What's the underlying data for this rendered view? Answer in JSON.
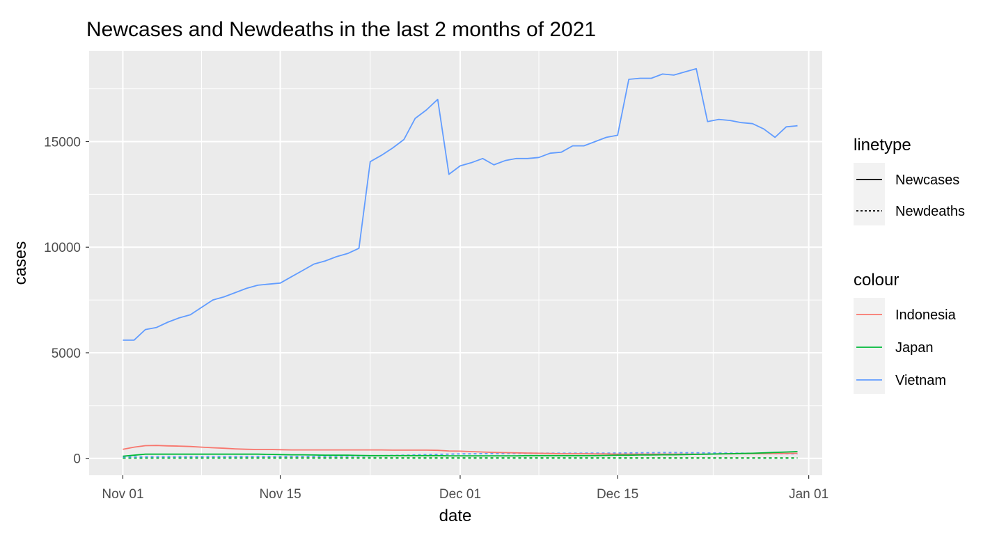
{
  "chart_data": {
    "type": "line",
    "title": "Newcases and Newdeaths in the last 2 months of 2021",
    "xlabel": "date",
    "ylabel": "cases",
    "x_ticks": [
      "Nov 01",
      "Nov 15",
      "Dec 01",
      "Dec 15",
      "Jan 01"
    ],
    "y_ticks": [
      "0",
      "5000",
      "10000",
      "15000"
    ],
    "ylim": [
      -800,
      19300
    ],
    "xlim_days": [
      -3,
      62.2
    ],
    "start_date": "2021-11-01",
    "grid": true,
    "legend_position": "right",
    "linetype_legend": {
      "title": "linetype",
      "entries": [
        {
          "label": "Newcases",
          "dash": "solid"
        },
        {
          "label": "Newdeaths",
          "dash": "dotted"
        }
      ]
    },
    "colour_legend": {
      "title": "colour",
      "entries": [
        {
          "label": "Indonesia",
          "color": "#F8766D"
        },
        {
          "label": "Japan",
          "color": "#00BA38"
        },
        {
          "label": "Vietnam",
          "color": "#619CFF"
        }
      ]
    },
    "series": [
      {
        "name": "Vietnam",
        "metric": "Newcases",
        "color": "#619CFF",
        "dash": "solid",
        "values": [
          5600,
          5600,
          6100,
          6200,
          6450,
          6650,
          6800,
          7150,
          7500,
          7650,
          7850,
          8050,
          8200,
          8250,
          8300,
          8600,
          8900,
          9200,
          9350,
          9550,
          9700,
          9950,
          14050,
          14350,
          14700,
          15100,
          16100,
          16500,
          17000,
          13450,
          13850,
          14000,
          14200,
          13900,
          14100,
          14200,
          14200,
          14250,
          14450,
          14500,
          14800,
          14800,
          15000,
          15200,
          15300,
          17950,
          18000,
          18000,
          18200,
          18150,
          18300,
          18450,
          15950,
          16050,
          16000,
          15900,
          15850,
          15600,
          15200,
          15700,
          15750
        ]
      },
      {
        "name": "Indonesia",
        "metric": "Newcases",
        "color": "#F8766D",
        "dash": "solid",
        "values": [
          430,
          530,
          600,
          610,
          590,
          580,
          560,
          530,
          500,
          480,
          450,
          430,
          420,
          420,
          410,
          400,
          400,
          400,
          400,
          400,
          400,
          400,
          400,
          400,
          390,
          390,
          390,
          390,
          380,
          350,
          340,
          320,
          300,
          280,
          270,
          260,
          250,
          240,
          230,
          220,
          220,
          220,
          210,
          210,
          200,
          200,
          200,
          200,
          200,
          200,
          200,
          200,
          200,
          210,
          210,
          220,
          220,
          220,
          230,
          230,
          240
        ]
      },
      {
        "name": "Japan",
        "metric": "Newcases",
        "color": "#00BA38",
        "dash": "solid",
        "values": [
          100,
          150,
          200,
          200,
          200,
          200,
          200,
          200,
          200,
          200,
          200,
          200,
          200,
          190,
          180,
          170,
          170,
          160,
          150,
          150,
          150,
          140,
          130,
          130,
          130,
          130,
          130,
          130,
          130,
          120,
          120,
          120,
          120,
          120,
          120,
          120,
          130,
          130,
          130,
          130,
          130,
          130,
          130,
          140,
          150,
          150,
          160,
          160,
          170,
          170,
          180,
          190,
          200,
          210,
          220,
          230,
          240,
          260,
          280,
          300,
          320
        ]
      },
      {
        "name": "Indonesia",
        "metric": "Newdeaths",
        "color": "#F8766D",
        "dash": "dotted",
        "values": [
          20,
          20,
          20,
          20,
          20,
          20,
          20,
          20,
          20,
          20,
          20,
          20,
          20,
          20,
          20,
          20,
          20,
          20,
          20,
          20,
          20,
          20,
          20,
          20,
          20,
          20,
          20,
          20,
          20,
          20,
          20,
          20,
          20,
          20,
          20,
          20,
          20,
          20,
          20,
          20,
          20,
          20,
          20,
          20,
          20,
          20,
          20,
          20,
          20,
          20,
          20,
          20,
          20,
          20,
          20,
          20,
          20,
          20,
          20,
          20,
          20
        ]
      },
      {
        "name": "Japan",
        "metric": "Newdeaths",
        "color": "#00BA38",
        "dash": "dotted",
        "values": [
          15,
          15,
          15,
          15,
          15,
          15,
          15,
          15,
          15,
          15,
          15,
          15,
          15,
          15,
          15,
          15,
          15,
          15,
          15,
          15,
          15,
          15,
          15,
          15,
          15,
          15,
          15,
          15,
          15,
          15,
          15,
          15,
          15,
          15,
          15,
          15,
          15,
          15,
          15,
          15,
          15,
          15,
          15,
          15,
          15,
          15,
          15,
          15,
          15,
          15,
          15,
          15,
          15,
          15,
          15,
          15,
          15,
          15,
          15,
          15,
          15
        ]
      },
      {
        "name": "Vietnam",
        "metric": "Newdeaths",
        "color": "#619CFF",
        "dash": "dotted",
        "values": [
          70,
          70,
          75,
          75,
          75,
          75,
          80,
          80,
          80,
          80,
          80,
          85,
          85,
          85,
          85,
          90,
          90,
          90,
          95,
          100,
          105,
          110,
          115,
          125,
          135,
          145,
          160,
          175,
          190,
          200,
          210,
          215,
          220,
          225,
          230,
          235,
          240,
          240,
          240,
          240,
          240,
          245,
          245,
          245,
          250,
          255,
          260,
          265,
          270,
          270,
          265,
          260,
          255,
          250,
          245,
          240,
          235,
          230,
          225,
          220,
          215
        ]
      }
    ]
  }
}
